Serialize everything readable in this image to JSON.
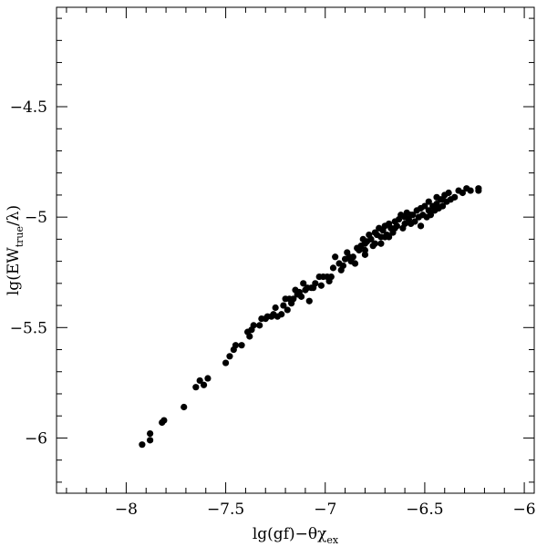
{
  "chart_data": {
    "type": "scatter",
    "title": "",
    "xlabel": {
      "main": "lg(gf)−θχ",
      "sub": "ex"
    },
    "ylabel": {
      "prefix": "lg(EW",
      "sub": "true",
      "suffix": "/λ)"
    },
    "xlim": [
      -8.35,
      -5.95
    ],
    "ylim": [
      -6.25,
      -4.05
    ],
    "xticks": [
      {
        "value": -8,
        "label": "−8"
      },
      {
        "value": -7.5,
        "label": "−7.5"
      },
      {
        "value": -7,
        "label": "−7"
      },
      {
        "value": -6.5,
        "label": "−6.5"
      },
      {
        "value": -6,
        "label": "−6"
      }
    ],
    "xminor_step": 0.1,
    "yticks": [
      {
        "value": -6,
        "label": "−6"
      },
      {
        "value": -5.5,
        "label": "−5.5"
      },
      {
        "value": -5,
        "label": "−5"
      },
      {
        "value": -4.5,
        "label": "−4.5"
      }
    ],
    "yminor_step": 0.1,
    "grid": false,
    "legend": "none",
    "marker_color": "#000000",
    "points": [
      [
        -7.92,
        -6.03
      ],
      [
        -7.88,
        -6.01
      ],
      [
        -7.88,
        -5.98
      ],
      [
        -7.82,
        -5.93
      ],
      [
        -7.81,
        -5.92
      ],
      [
        -7.71,
        -5.86
      ],
      [
        -7.65,
        -5.77
      ],
      [
        -7.63,
        -5.74
      ],
      [
        -7.61,
        -5.76
      ],
      [
        -7.59,
        -5.73
      ],
      [
        -7.5,
        -5.66
      ],
      [
        -7.48,
        -5.63
      ],
      [
        -7.46,
        -5.6
      ],
      [
        -7.45,
        -5.58
      ],
      [
        -7.42,
        -5.58
      ],
      [
        -7.39,
        -5.52
      ],
      [
        -7.38,
        -5.54
      ],
      [
        -7.37,
        -5.51
      ],
      [
        -7.36,
        -5.49
      ],
      [
        -7.33,
        -5.49
      ],
      [
        -7.32,
        -5.46
      ],
      [
        -7.3,
        -5.46
      ],
      [
        -7.29,
        -5.45
      ],
      [
        -7.27,
        -5.45
      ],
      [
        -7.26,
        -5.44
      ],
      [
        -7.24,
        -5.45
      ],
      [
        -7.22,
        -5.44
      ],
      [
        -7.21,
        -5.4
      ],
      [
        -7.2,
        -5.37
      ],
      [
        -7.19,
        -5.42
      ],
      [
        -7.17,
        -5.39
      ],
      [
        -7.16,
        -5.37
      ],
      [
        -7.15,
        -5.33
      ],
      [
        -7.13,
        -5.34
      ],
      [
        -7.12,
        -5.36
      ],
      [
        -7.11,
        -5.3
      ],
      [
        -7.1,
        -5.33
      ],
      [
        -7.09,
        -5.32
      ],
      [
        -7.08,
        -5.38
      ],
      [
        -7.06,
        -5.32
      ],
      [
        -7.05,
        -5.3
      ],
      [
        -7.03,
        -5.27
      ],
      [
        -7.02,
        -5.31
      ],
      [
        -7.01,
        -5.27
      ],
      [
        -6.99,
        -5.27
      ],
      [
        -6.97,
        -5.27
      ],
      [
        -6.96,
        -5.23
      ],
      [
        -6.95,
        -5.18
      ],
      [
        -6.93,
        -5.21
      ],
      [
        -6.92,
        -5.24
      ],
      [
        -6.9,
        -5.19
      ],
      [
        -6.89,
        -5.16
      ],
      [
        -6.88,
        -5.18
      ],
      [
        -6.86,
        -5.18
      ],
      [
        -6.85,
        -5.21
      ],
      [
        -6.84,
        -5.14
      ],
      [
        -6.83,
        -5.15
      ],
      [
        -6.82,
        -5.13
      ],
      [
        -6.81,
        -5.1
      ],
      [
        -6.8,
        -5.12
      ],
      [
        -6.79,
        -5.11
      ],
      [
        -6.78,
        -5.08
      ],
      [
        -6.77,
        -5.1
      ],
      [
        -6.76,
        -5.13
      ],
      [
        -6.75,
        -5.07
      ],
      [
        -6.74,
        -5.08
      ],
      [
        -6.73,
        -5.05
      ],
      [
        -6.72,
        -5.09
      ],
      [
        -6.71,
        -5.06
      ],
      [
        -6.7,
        -5.04
      ],
      [
        -6.69,
        -5.08
      ],
      [
        -6.68,
        -5.03
      ],
      [
        -6.67,
        -5.05
      ],
      [
        -6.66,
        -5.07
      ],
      [
        -6.65,
        -5.02
      ],
      [
        -6.64,
        -5.04
      ],
      [
        -6.63,
        -5.01
      ],
      [
        -6.62,
        -4.99
      ],
      [
        -6.61,
        -5.05
      ],
      [
        -6.6,
        -5.03
      ],
      [
        -6.59,
        -4.98
      ],
      [
        -6.58,
        -5.01
      ],
      [
        -6.57,
        -5.03
      ],
      [
        -6.56,
        -4.99
      ],
      [
        -6.55,
        -5.02
      ],
      [
        -6.54,
        -4.97
      ],
      [
        -6.53,
        -5.0
      ],
      [
        -6.52,
        -5.04
      ],
      [
        -6.51,
        -4.99
      ],
      [
        -6.5,
        -4.95
      ],
      [
        -6.49,
        -5.0
      ],
      [
        -6.48,
        -4.97
      ],
      [
        -6.47,
        -4.99
      ],
      [
        -6.46,
        -4.95
      ],
      [
        -6.45,
        -4.97
      ],
      [
        -6.44,
        -4.94
      ],
      [
        -6.43,
        -4.96
      ],
      [
        -6.42,
        -4.92
      ],
      [
        -6.41,
        -4.95
      ],
      [
        -6.4,
        -4.9
      ],
      [
        -6.39,
        -4.93
      ],
      [
        -6.38,
        -4.89
      ],
      [
        -6.37,
        -4.92
      ],
      [
        -6.35,
        -4.91
      ],
      [
        -6.33,
        -4.88
      ],
      [
        -6.31,
        -4.89
      ],
      [
        -6.29,
        -4.87
      ],
      [
        -6.27,
        -4.88
      ],
      [
        -6.23,
        -4.87
      ],
      [
        -6.23,
        -4.88
      ],
      [
        -6.8,
        -5.15
      ],
      [
        -6.75,
        -5.12
      ],
      [
        -6.7,
        -5.09
      ],
      [
        -6.65,
        -5.05
      ],
      [
        -6.6,
        -5.0
      ],
      [
        -6.57,
        -4.99
      ],
      [
        -6.52,
        -4.96
      ],
      [
        -6.48,
        -4.93
      ],
      [
        -6.44,
        -4.91
      ],
      [
        -6.41,
        -4.92
      ],
      [
        -7.25,
        -5.41
      ],
      [
        -7.18,
        -5.37
      ],
      [
        -7.14,
        -5.35
      ],
      [
        -7.07,
        -5.32
      ],
      [
        -6.98,
        -5.29
      ],
      [
        -6.91,
        -5.22
      ],
      [
        -6.87,
        -5.2
      ],
      [
        -6.8,
        -5.17
      ],
      [
        -6.72,
        -5.12
      ],
      [
        -6.68,
        -5.09
      ]
    ]
  }
}
